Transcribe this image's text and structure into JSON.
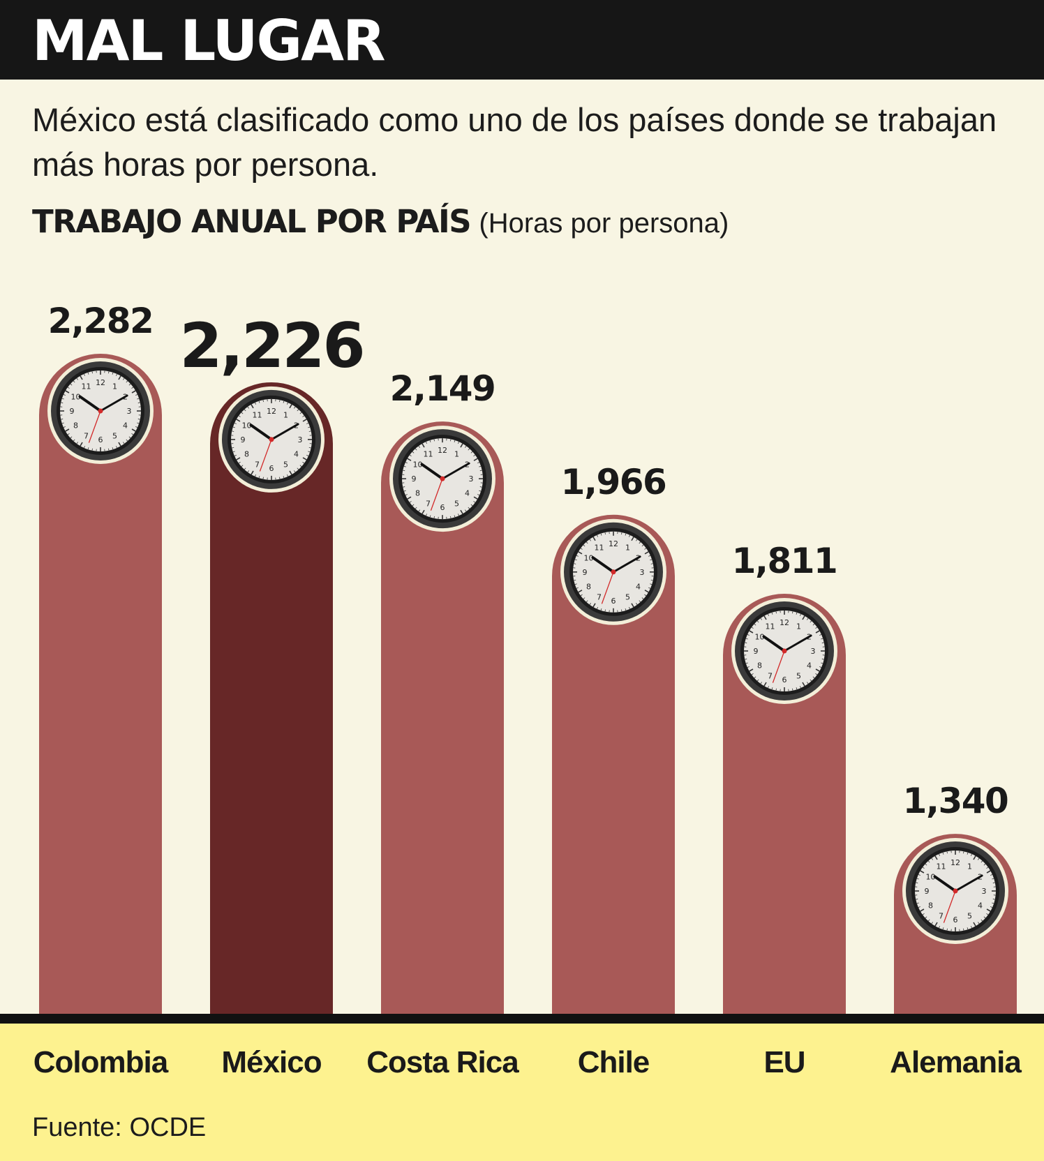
{
  "header": {
    "title": "MAL LUGAR"
  },
  "subtitle": "México está clasificado como uno de los países donde se trabajan más horas por persona.",
  "heading": {
    "strong": "TRABAJO ANUAL POR PAÍS",
    "unit": "(Horas por persona)"
  },
  "source": {
    "label": "Fuente:",
    "value": "OCDE"
  },
  "colors": {
    "bar": "#a85957",
    "highlight": "#672727",
    "background": "#f8f5e3",
    "bottom_band": "#fdf28f",
    "header": "#161616"
  },
  "chart_data": {
    "type": "bar",
    "title": "TRABAJO ANUAL POR PAÍS",
    "ylabel": "(Horas por persona)",
    "categories": [
      "Colombia",
      "México",
      "Costa Rica",
      "Chile",
      "EU",
      "Alemania"
    ],
    "values": [
      2282,
      2226,
      2149,
      1966,
      1811,
      1340
    ],
    "value_labels": [
      "2,282",
      "2,226",
      "2,149",
      "1,966",
      "1,811",
      "1,340"
    ],
    "highlight": "México",
    "grid": false,
    "legend": "none"
  }
}
